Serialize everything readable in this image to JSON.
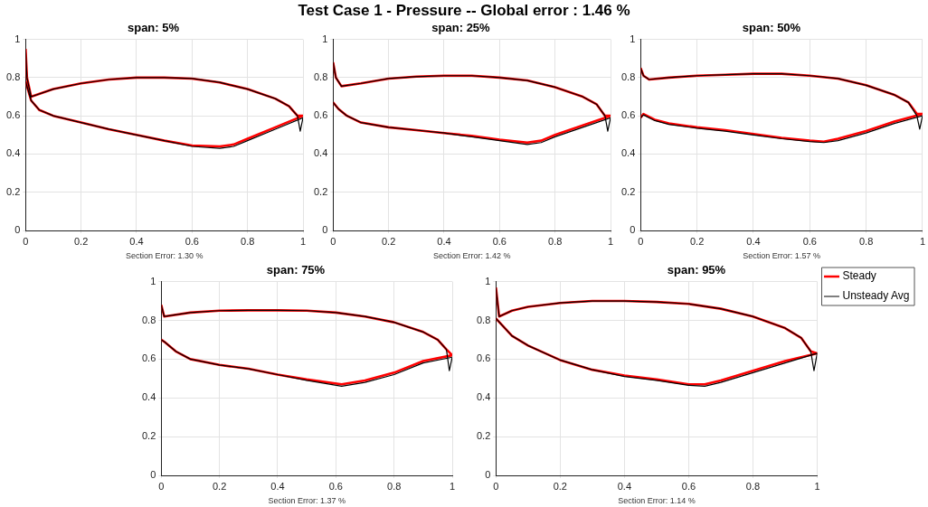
{
  "chart_data": [
    {
      "type": "line",
      "title": "span: 5%",
      "xlabel": "Section Error: 1.30 %",
      "annotations": [
        "Test Case 1 - Pressure -- Global error : 1.46 %"
      ],
      "xlim": [
        0,
        1
      ],
      "ylim": [
        0,
        1
      ],
      "xticks": [
        0,
        0.2,
        0.4,
        0.6,
        0.8,
        1
      ],
      "yticks": [
        0,
        0.2,
        0.4,
        0.6,
        0.8,
        1
      ],
      "grid": true,
      "legend": false,
      "marker": "none",
      "line_style": "solid",
      "series": [
        {
          "color": "#ff0000",
          "x": [
            0,
            0.005,
            0.02,
            0.1,
            0.2,
            0.3,
            0.4,
            0.5,
            0.6,
            0.7,
            0.8,
            0.9,
            0.95,
            0.98,
            1,
            0.9,
            0.8,
            0.75,
            0.7,
            0.6,
            0.5,
            0.4,
            0.3,
            0.2,
            0.1,
            0.05,
            0.02,
            0
          ],
          "values": [
            0.95,
            0.8,
            0.7,
            0.74,
            0.77,
            0.79,
            0.8,
            0.8,
            0.795,
            0.775,
            0.74,
            0.69,
            0.65,
            0.6,
            0.6,
            0.54,
            0.48,
            0.45,
            0.44,
            0.445,
            0.47,
            0.5,
            0.53,
            0.565,
            0.6,
            0.63,
            0.68,
            0.78
          ]
        },
        {
          "color": "#000000",
          "x": [
            0,
            0.005,
            0.02,
            0.1,
            0.2,
            0.3,
            0.4,
            0.5,
            0.6,
            0.7,
            0.8,
            0.9,
            0.95,
            0.98,
            0.99,
            1,
            0.9,
            0.8,
            0.75,
            0.7,
            0.6,
            0.5,
            0.4,
            0.3,
            0.2,
            0.1,
            0.05,
            0.02,
            0
          ],
          "values": [
            0.95,
            0.8,
            0.7,
            0.74,
            0.77,
            0.79,
            0.8,
            0.8,
            0.795,
            0.775,
            0.74,
            0.69,
            0.65,
            0.6,
            0.52,
            0.59,
            0.53,
            0.47,
            0.44,
            0.43,
            0.44,
            0.47,
            0.5,
            0.53,
            0.565,
            0.6,
            0.63,
            0.68,
            0.78
          ]
        }
      ]
    },
    {
      "type": "line",
      "title": "span: 25%",
      "xlabel": "Section Error: 1.42 %",
      "xlim": [
        0,
        1
      ],
      "ylim": [
        0,
        1
      ],
      "xticks": [
        0,
        0.2,
        0.4,
        0.6,
        0.8,
        1
      ],
      "yticks": [
        0,
        0.2,
        0.4,
        0.6,
        0.8,
        1
      ],
      "grid": true,
      "legend": false,
      "marker": "none",
      "line_style": "solid",
      "series": [
        {
          "color": "#ff0000",
          "x": [
            0,
            0.01,
            0.03,
            0.1,
            0.2,
            0.3,
            0.4,
            0.5,
            0.6,
            0.7,
            0.8,
            0.9,
            0.95,
            0.98,
            1,
            0.9,
            0.8,
            0.75,
            0.7,
            0.6,
            0.5,
            0.4,
            0.3,
            0.2,
            0.1,
            0.05,
            0.02,
            0
          ],
          "values": [
            0.88,
            0.8,
            0.755,
            0.77,
            0.795,
            0.805,
            0.81,
            0.81,
            0.8,
            0.785,
            0.75,
            0.7,
            0.66,
            0.6,
            0.6,
            0.55,
            0.5,
            0.47,
            0.46,
            0.475,
            0.495,
            0.51,
            0.525,
            0.54,
            0.565,
            0.6,
            0.635,
            0.67
          ]
        },
        {
          "color": "#000000",
          "x": [
            0,
            0.01,
            0.03,
            0.1,
            0.2,
            0.3,
            0.4,
            0.5,
            0.6,
            0.7,
            0.8,
            0.9,
            0.95,
            0.98,
            0.99,
            1,
            0.9,
            0.8,
            0.75,
            0.7,
            0.6,
            0.5,
            0.4,
            0.3,
            0.2,
            0.1,
            0.05,
            0.02,
            0
          ],
          "values": [
            0.88,
            0.8,
            0.755,
            0.77,
            0.795,
            0.805,
            0.81,
            0.81,
            0.8,
            0.785,
            0.75,
            0.7,
            0.66,
            0.6,
            0.52,
            0.59,
            0.54,
            0.49,
            0.46,
            0.45,
            0.47,
            0.49,
            0.51,
            0.525,
            0.54,
            0.565,
            0.6,
            0.635,
            0.67
          ]
        }
      ]
    },
    {
      "type": "line",
      "title": "span: 50%",
      "xlabel": "Section Error: 1.57 %",
      "xlim": [
        0,
        1
      ],
      "ylim": [
        0,
        1
      ],
      "xticks": [
        0,
        0.2,
        0.4,
        0.6,
        0.8,
        1
      ],
      "yticks": [
        0,
        0.2,
        0.4,
        0.6,
        0.8,
        1
      ],
      "grid": true,
      "legend": false,
      "marker": "none",
      "line_style": "solid",
      "series": [
        {
          "color": "#ff0000",
          "x": [
            0,
            0.01,
            0.03,
            0.1,
            0.2,
            0.3,
            0.4,
            0.5,
            0.6,
            0.7,
            0.8,
            0.9,
            0.95,
            0.98,
            1,
            0.9,
            0.8,
            0.7,
            0.65,
            0.6,
            0.5,
            0.4,
            0.3,
            0.2,
            0.1,
            0.05,
            0.01,
            0
          ],
          "values": [
            0.85,
            0.81,
            0.79,
            0.8,
            0.81,
            0.815,
            0.82,
            0.82,
            0.81,
            0.795,
            0.76,
            0.71,
            0.67,
            0.61,
            0.61,
            0.57,
            0.52,
            0.48,
            0.465,
            0.47,
            0.485,
            0.505,
            0.525,
            0.54,
            0.56,
            0.58,
            0.61,
            0.59
          ]
        },
        {
          "color": "#000000",
          "x": [
            0,
            0.01,
            0.03,
            0.1,
            0.2,
            0.3,
            0.4,
            0.5,
            0.6,
            0.7,
            0.8,
            0.9,
            0.95,
            0.98,
            0.99,
            1,
            0.9,
            0.8,
            0.7,
            0.65,
            0.6,
            0.5,
            0.4,
            0.3,
            0.2,
            0.1,
            0.05,
            0.01,
            0
          ],
          "values": [
            0.85,
            0.81,
            0.79,
            0.8,
            0.81,
            0.815,
            0.82,
            0.82,
            0.81,
            0.795,
            0.76,
            0.71,
            0.67,
            0.6,
            0.53,
            0.6,
            0.56,
            0.51,
            0.47,
            0.46,
            0.465,
            0.48,
            0.5,
            0.52,
            0.535,
            0.555,
            0.575,
            0.605,
            0.59
          ]
        }
      ]
    },
    {
      "type": "line",
      "title": "span: 75%",
      "xlabel": "Section Error: 1.37 %",
      "xlim": [
        0,
        1
      ],
      "ylim": [
        0,
        1
      ],
      "xticks": [
        0,
        0.2,
        0.4,
        0.6,
        0.8,
        1
      ],
      "yticks": [
        0,
        0.2,
        0.4,
        0.6,
        0.8,
        1
      ],
      "grid": true,
      "legend": false,
      "marker": "none",
      "line_style": "solid",
      "series": [
        {
          "color": "#ff0000",
          "x": [
            0,
            0.01,
            0.1,
            0.2,
            0.3,
            0.4,
            0.5,
            0.6,
            0.7,
            0.8,
            0.9,
            0.95,
            0.98,
            1,
            0.9,
            0.8,
            0.7,
            0.62,
            0.5,
            0.4,
            0.3,
            0.2,
            0.1,
            0.05,
            0.01,
            0
          ],
          "values": [
            0.88,
            0.82,
            0.84,
            0.85,
            0.852,
            0.852,
            0.85,
            0.84,
            0.82,
            0.79,
            0.74,
            0.7,
            0.65,
            0.62,
            0.59,
            0.53,
            0.49,
            0.47,
            0.495,
            0.52,
            0.55,
            0.57,
            0.6,
            0.64,
            0.69,
            0.7
          ]
        },
        {
          "color": "#000000",
          "x": [
            0,
            0.01,
            0.1,
            0.2,
            0.3,
            0.4,
            0.5,
            0.6,
            0.7,
            0.8,
            0.9,
            0.95,
            0.98,
            0.99,
            1,
            0.9,
            0.8,
            0.7,
            0.62,
            0.5,
            0.4,
            0.3,
            0.2,
            0.1,
            0.05,
            0.01,
            0
          ],
          "values": [
            0.88,
            0.82,
            0.84,
            0.85,
            0.852,
            0.852,
            0.85,
            0.84,
            0.82,
            0.79,
            0.74,
            0.7,
            0.65,
            0.54,
            0.61,
            0.58,
            0.52,
            0.48,
            0.46,
            0.49,
            0.52,
            0.55,
            0.57,
            0.6,
            0.64,
            0.69,
            0.7
          ]
        }
      ]
    },
    {
      "type": "line",
      "title": "span: 95%",
      "xlabel": "Section Error: 1.14 %",
      "xlim": [
        0,
        1
      ],
      "ylim": [
        0,
        1
      ],
      "xticks": [
        0,
        0.2,
        0.4,
        0.6,
        0.8,
        1
      ],
      "yticks": [
        0,
        0.2,
        0.4,
        0.6,
        0.8,
        1
      ],
      "grid": true,
      "legend": "top right",
      "marker": "none",
      "line_style": "solid",
      "series": [
        {
          "name": "Steady",
          "color": "#ff0000",
          "x": [
            0,
            0.01,
            0.05,
            0.1,
            0.2,
            0.3,
            0.4,
            0.5,
            0.6,
            0.7,
            0.8,
            0.9,
            0.95,
            0.98,
            1,
            0.9,
            0.8,
            0.7,
            0.65,
            0.6,
            0.5,
            0.4,
            0.3,
            0.2,
            0.1,
            0.05,
            0
          ],
          "values": [
            0.97,
            0.82,
            0.85,
            0.87,
            0.89,
            0.9,
            0.9,
            0.895,
            0.885,
            0.86,
            0.82,
            0.76,
            0.71,
            0.64,
            0.63,
            0.59,
            0.54,
            0.49,
            0.47,
            0.47,
            0.495,
            0.515,
            0.545,
            0.595,
            0.67,
            0.72,
            0.81
          ]
        },
        {
          "name": "Unsteady Avg",
          "color": "#000000",
          "x": [
            0,
            0.01,
            0.05,
            0.1,
            0.2,
            0.3,
            0.4,
            0.5,
            0.6,
            0.7,
            0.8,
            0.9,
            0.95,
            0.98,
            0.99,
            1,
            0.9,
            0.8,
            0.7,
            0.65,
            0.6,
            0.5,
            0.4,
            0.3,
            0.2,
            0.1,
            0.05,
            0
          ],
          "values": [
            0.97,
            0.82,
            0.85,
            0.87,
            0.89,
            0.9,
            0.9,
            0.895,
            0.885,
            0.86,
            0.82,
            0.76,
            0.71,
            0.64,
            0.54,
            0.63,
            0.58,
            0.53,
            0.48,
            0.46,
            0.465,
            0.49,
            0.51,
            0.545,
            0.595,
            0.67,
            0.72,
            0.81
          ]
        }
      ]
    }
  ]
}
